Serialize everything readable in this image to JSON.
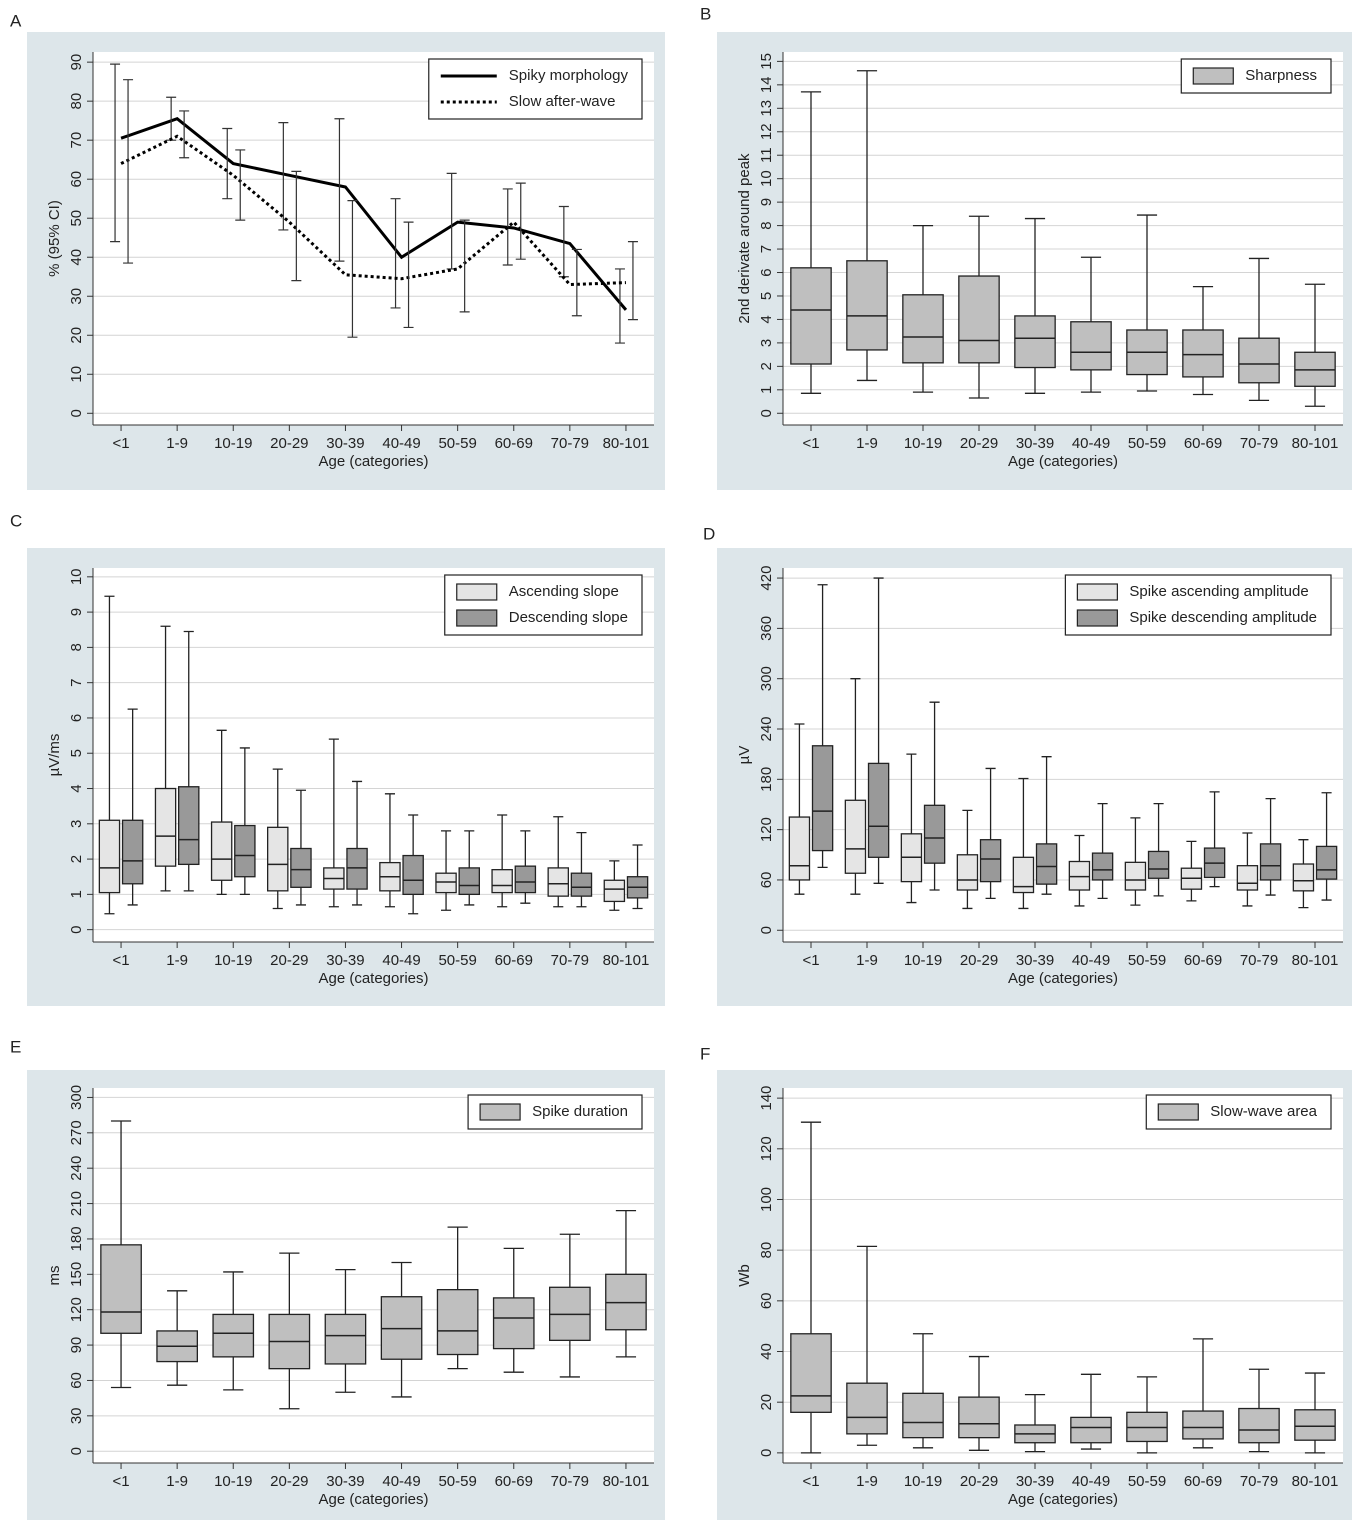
{
  "chart_data": [
    {
      "panel_label": "A",
      "type": "line",
      "ylabel": "% (95% CI)",
      "xlabel": "Age (categories)",
      "categories": [
        "<1",
        "1-9",
        "10-19",
        "20-29",
        "30-39",
        "40-49",
        "50-59",
        "60-69",
        "70-79",
        "80-101"
      ],
      "ylim": [
        -3,
        92.6
      ],
      "yticks": [
        0,
        10,
        20,
        30,
        40,
        50,
        60,
        70,
        80,
        90
      ],
      "grid": true,
      "legend": "upper right",
      "series": [
        {
          "name": "Spiky morphology",
          "color": "#000000",
          "line_style": "solid",
          "values": [
            70.5,
            75.5,
            64,
            61,
            58,
            40,
            49,
            47.5,
            43.5,
            26.5
          ],
          "ci_low": [
            44,
            70,
            55,
            47,
            39,
            27,
            37,
            38,
            35,
            18
          ],
          "ci_high": [
            89.5,
            81,
            73,
            74.5,
            75.5,
            55,
            61.5,
            57.5,
            53,
            37
          ]
        },
        {
          "name": "Slow after-wave",
          "color": "#000000",
          "line_style": "dotted",
          "values": [
            64,
            71,
            61,
            49,
            35.5,
            34.5,
            37,
            49,
            33,
            33.5
          ],
          "ci_low": [
            38.5,
            65.5,
            49.5,
            34,
            19.5,
            22,
            26,
            39.5,
            25,
            24
          ],
          "ci_high": [
            85.5,
            77.5,
            67.5,
            62,
            54.5,
            49,
            49.5,
            59,
            42,
            44
          ]
        }
      ]
    },
    {
      "panel_label": "B",
      "type": "box",
      "ylabel": "2nd derivate around peak",
      "xlabel": "Age (categories)",
      "categories": [
        "<1",
        "1-9",
        "10-19",
        "20-29",
        "30-39",
        "40-49",
        "50-59",
        "60-69",
        "70-79",
        "80-101"
      ],
      "ylim": [
        -0.5,
        15.4
      ],
      "yticks": [
        0,
        1,
        2,
        3,
        4,
        5,
        6,
        7,
        8,
        9,
        10,
        11,
        12,
        13,
        14,
        15
      ],
      "grid": true,
      "legend": "upper right",
      "series": [
        {
          "name": "Sharpness",
          "color": "#bfbfbf",
          "whisker_low": [
            0.85,
            1.4,
            0.9,
            0.65,
            0.85,
            0.9,
            0.95,
            0.8,
            0.55,
            0.3
          ],
          "q1": [
            2.1,
            2.7,
            2.15,
            2.15,
            1.95,
            1.85,
            1.65,
            1.55,
            1.3,
            1.15
          ],
          "median": [
            4.4,
            4.15,
            3.25,
            3.1,
            3.2,
            2.6,
            2.6,
            2.5,
            2.1,
            1.85
          ],
          "q3": [
            6.2,
            6.5,
            5.05,
            5.85,
            4.15,
            3.9,
            3.55,
            3.55,
            3.2,
            2.6
          ],
          "whisker_high": [
            13.7,
            14.6,
            8.0,
            8.4,
            8.3,
            6.65,
            8.45,
            5.4,
            6.6,
            5.5
          ]
        }
      ]
    },
    {
      "panel_label": "C",
      "type": "box",
      "ylabel": "µV/ms",
      "xlabel": "Age (categories)",
      "categories": [
        "<1",
        "1-9",
        "10-19",
        "20-29",
        "30-39",
        "40-49",
        "50-59",
        "60-69",
        "70-79",
        "80-101"
      ],
      "ylim": [
        -0.35,
        10.25
      ],
      "yticks": [
        0,
        1,
        2,
        3,
        4,
        5,
        6,
        7,
        8,
        9,
        10
      ],
      "grid": true,
      "legend": "upper right",
      "series": [
        {
          "name": "Ascending slope",
          "color": "#e5e5e5",
          "whisker_low": [
            0.45,
            1.1,
            1.0,
            0.6,
            0.65,
            0.65,
            0.55,
            0.65,
            0.65,
            0.55
          ],
          "q1": [
            1.05,
            1.8,
            1.4,
            1.1,
            1.15,
            1.1,
            1.05,
            1.05,
            0.95,
            0.8
          ],
          "median": [
            1.75,
            2.65,
            2.0,
            1.85,
            1.45,
            1.5,
            1.35,
            1.25,
            1.3,
            1.15
          ],
          "q3": [
            3.1,
            4.0,
            3.05,
            2.9,
            1.75,
            1.9,
            1.6,
            1.7,
            1.75,
            1.4
          ],
          "whisker_high": [
            9.45,
            8.6,
            5.65,
            4.55,
            5.4,
            3.85,
            2.8,
            3.25,
            3.2,
            1.95
          ]
        },
        {
          "name": "Descending slope",
          "color": "#999999",
          "whisker_low": [
            0.7,
            1.1,
            1.0,
            0.7,
            0.7,
            0.45,
            0.7,
            0.75,
            0.65,
            0.6
          ],
          "q1": [
            1.3,
            1.85,
            1.5,
            1.2,
            1.15,
            1.0,
            1.0,
            1.05,
            0.95,
            0.9
          ],
          "median": [
            1.95,
            2.55,
            2.1,
            1.7,
            1.75,
            1.4,
            1.25,
            1.35,
            1.2,
            1.2
          ],
          "q3": [
            3.1,
            4.05,
            2.95,
            2.3,
            2.3,
            2.1,
            1.75,
            1.8,
            1.6,
            1.5
          ],
          "whisker_high": [
            6.25,
            8.45,
            5.15,
            3.95,
            4.2,
            3.25,
            2.8,
            2.8,
            2.75,
            2.4
          ]
        }
      ]
    },
    {
      "panel_label": "D",
      "type": "box",
      "ylabel": "µV",
      "xlabel": "Age (categories)",
      "categories": [
        "<1",
        "1-9",
        "10-19",
        "20-29",
        "30-39",
        "40-49",
        "50-59",
        "60-69",
        "70-79",
        "80-101"
      ],
      "ylim": [
        -14,
        432
      ],
      "yticks": [
        0,
        60,
        120,
        180,
        240,
        300,
        360,
        420
      ],
      "grid": true,
      "legend": "upper right",
      "series": [
        {
          "name": "Spike ascending amplitude",
          "color": "#e5e5e5",
          "whisker_low": [
            43,
            43,
            33,
            26,
            26,
            29,
            30,
            35,
            29,
            27
          ],
          "q1": [
            60,
            68,
            58,
            48,
            45,
            48,
            48,
            49,
            48,
            47
          ],
          "median": [
            77,
            97,
            87,
            60,
            52,
            64,
            60,
            62,
            56,
            59
          ],
          "q3": [
            135,
            155,
            115,
            90,
            87,
            82,
            81,
            74,
            77,
            79
          ],
          "whisker_high": [
            246,
            300,
            210,
            143,
            181,
            113,
            134,
            106,
            116,
            108
          ]
        },
        {
          "name": "Spike descending amplitude",
          "color": "#999999",
          "whisker_low": [
            75,
            56,
            48,
            38,
            43,
            38,
            41,
            52,
            42,
            36
          ],
          "q1": [
            95,
            87,
            80,
            58,
            55,
            60,
            62,
            63,
            60,
            61
          ],
          "median": [
            142,
            124,
            110,
            85,
            76,
            72,
            73,
            80,
            77,
            72
          ],
          "q3": [
            220,
            199,
            149,
            108,
            103,
            92,
            94,
            98,
            103,
            100
          ],
          "whisker_high": [
            412,
            420,
            272,
            193,
            207,
            151,
            151,
            165,
            157,
            164
          ]
        }
      ]
    },
    {
      "panel_label": "E",
      "type": "box",
      "ylabel": "ms",
      "xlabel": "Age (categories)",
      "categories": [
        "<1",
        "1-9",
        "10-19",
        "20-29",
        "30-39",
        "40-49",
        "50-59",
        "60-69",
        "70-79",
        "80-101"
      ],
      "ylim": [
        -10,
        308
      ],
      "yticks": [
        0,
        30,
        60,
        90,
        120,
        150,
        180,
        210,
        240,
        270,
        300
      ],
      "grid": true,
      "legend": "upper right",
      "series": [
        {
          "name": "Spike duration",
          "color": "#bfbfbf",
          "whisker_low": [
            54,
            56,
            52,
            36,
            50,
            46,
            70,
            67,
            63,
            80
          ],
          "q1": [
            100,
            76,
            80,
            70,
            74,
            78,
            82,
            87,
            94,
            103
          ],
          "median": [
            118,
            89,
            100,
            93,
            98,
            104,
            102,
            113,
            116,
            126
          ],
          "q3": [
            175,
            102,
            116,
            116,
            116,
            131,
            137,
            130,
            139,
            150
          ],
          "whisker_high": [
            280,
            136,
            152,
            168,
            154,
            160,
            190,
            172,
            184,
            204
          ]
        }
      ]
    },
    {
      "panel_label": "F",
      "type": "box",
      "ylabel": "Wb",
      "xlabel": "Age (categories)",
      "categories": [
        "<1",
        "1-9",
        "10-19",
        "20-29",
        "30-39",
        "40-49",
        "50-59",
        "60-69",
        "70-79",
        "80-101"
      ],
      "ylim": [
        -4,
        144
      ],
      "yticks": [
        0,
        20,
        40,
        60,
        80,
        100,
        120,
        140
      ],
      "grid": true,
      "legend": "upper right",
      "series": [
        {
          "name": "Slow-wave area",
          "color": "#bfbfbf",
          "whisker_low": [
            0,
            3,
            2,
            1,
            0.5,
            1.5,
            0,
            2,
            0.5,
            0
          ],
          "q1": [
            16,
            7.5,
            6,
            6,
            4,
            4,
            4.5,
            5.5,
            4,
            5
          ],
          "median": [
            22.5,
            14,
            12,
            11.5,
            7.5,
            10,
            10,
            10,
            9,
            10.5
          ],
          "q3": [
            47,
            27.5,
            23.5,
            22,
            11,
            14,
            16,
            16.5,
            17.5,
            17
          ],
          "whisker_high": [
            130.5,
            81.5,
            47,
            38,
            23,
            31,
            30,
            45,
            33,
            31.5
          ]
        }
      ]
    }
  ]
}
